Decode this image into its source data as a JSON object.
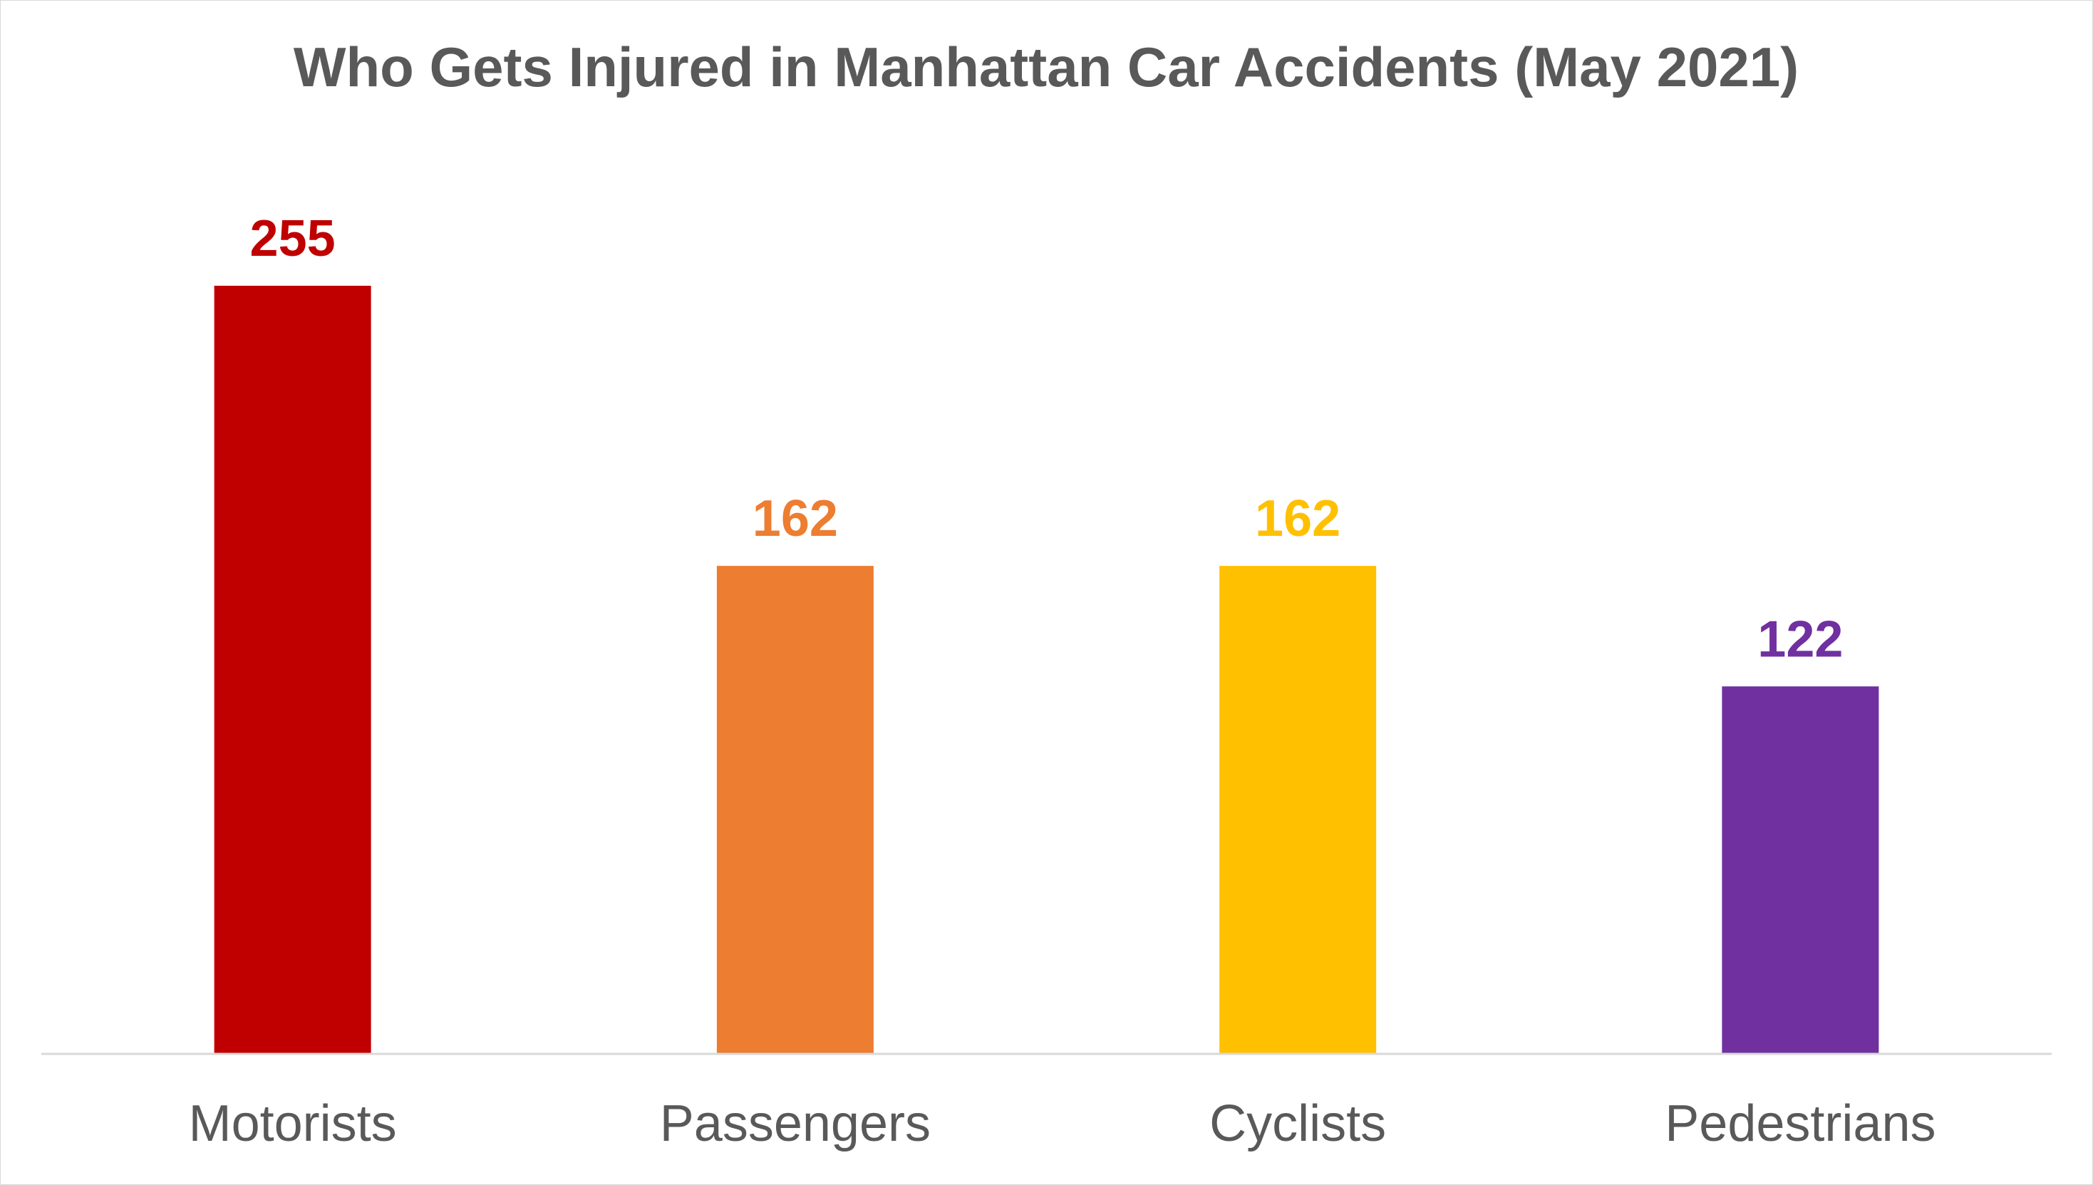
{
  "chart_data": {
    "type": "bar",
    "title": "Who Gets Injured in Manhattan Car Accidents (May 2021)",
    "xlabel": "",
    "ylabel": "",
    "categories": [
      "Motorists",
      "Passengers",
      "Cyclists",
      "Pedestrians"
    ],
    "values": [
      255,
      162,
      162,
      122
    ],
    "data_labels": [
      "255",
      "162",
      "162",
      "122"
    ],
    "colors": [
      "#C00000",
      "#ED7D31",
      "#FFC000",
      "#7030A0"
    ],
    "ylim": [
      0,
      280
    ],
    "grid": false,
    "legend": "none",
    "axis_line_color": "#d9d9d9",
    "text_color": "#595959"
  }
}
